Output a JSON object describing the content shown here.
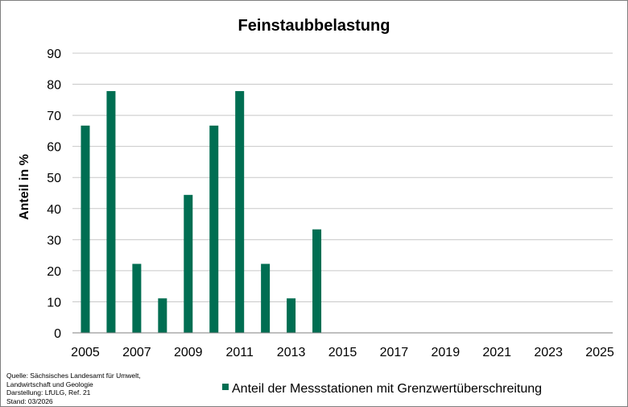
{
  "chart_data": {
    "type": "bar",
    "title": "Feinstaubbelastung",
    "ylabel": "Anteil in %",
    "xlabel": "",
    "ylim": [
      0,
      90
    ],
    "yticks": [
      0,
      10,
      20,
      30,
      40,
      50,
      60,
      70,
      80,
      90
    ],
    "xlim": [
      2004.5,
      2025.5
    ],
    "xticks": [
      2005,
      2007,
      2009,
      2011,
      2013,
      2015,
      2017,
      2019,
      2021,
      2023,
      2025
    ],
    "x": [
      2005,
      2006,
      2007,
      2008,
      2009,
      2010,
      2011,
      2012,
      2013,
      2014
    ],
    "series": [
      {
        "name": "Anteil der Messstationen mit Grenzwertüberschreitung",
        "values": [
          66.7,
          77.8,
          22.2,
          11.1,
          44.4,
          66.7,
          77.8,
          22.2,
          11.1,
          33.3
        ],
        "color": "#006e52"
      }
    ],
    "grid": true,
    "legend_position": "bottom"
  },
  "source_lines": [
    "Quelle: Sächsisches Landesamt für Umwelt,",
    "Landwirtschaft und Geologie",
    "Darstellung: LfULG, Ref. 21",
    "Stand: 03/2026"
  ]
}
